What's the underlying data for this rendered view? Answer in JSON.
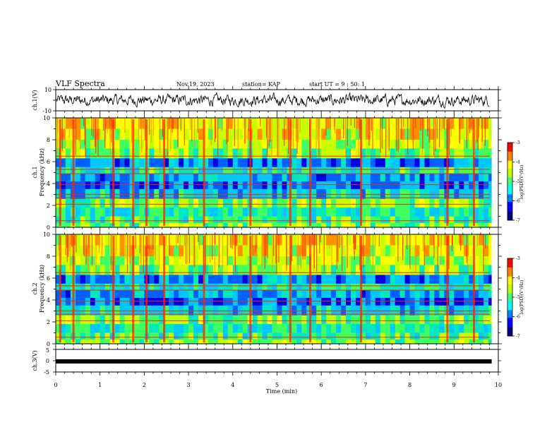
{
  "header": {
    "title": "VLF Spectra",
    "date": "Nov.19, 2023",
    "station": "station= KAP",
    "start": "start  UT =  9 : 50: 1"
  },
  "colorbar": {
    "label": "log(PSD)(V²/Hz)",
    "ticks": [
      "-3",
      "-4",
      "-5",
      "-6",
      "-7"
    ],
    "colors": [
      "#00007f",
      "#0000ff",
      "#0080ff",
      "#00ffff",
      "#40ff80",
      "#c0ff00",
      "#ffff00",
      "#ff8000",
      "#ff0000",
      "#ffffff"
    ]
  },
  "chart_data": [
    {
      "type": "line",
      "ylabel": "ch.1(V)",
      "ylim": [
        -10,
        10
      ],
      "yticks": [
        "10",
        "-10"
      ],
      "xlim": [
        0,
        10
      ],
      "description_values": {
        "mean": 0,
        "amplitude_approx": 7
      }
    },
    {
      "type": "heatmap",
      "ylabel_channel": "ch.1",
      "ylabel": "Frequency (kHz)",
      "xlim": [
        0,
        10
      ],
      "ylim": [
        0,
        10
      ],
      "yticks": [
        "0",
        "2",
        "4",
        "6",
        "8",
        "10"
      ],
      "colorbar_range": [
        -7,
        -3
      ],
      "horizontal_lines_khz": [
        0.6,
        2.1,
        2.7,
        3.0,
        3.9,
        4.9,
        5.3,
        6.5
      ],
      "vertical_bursts_min": [
        0.1,
        0.4,
        1.3,
        1.75,
        2.05,
        2.45,
        3.35,
        4.4,
        5.3,
        5.75,
        6.9,
        8.85,
        9.45
      ]
    },
    {
      "type": "heatmap",
      "ylabel_channel": "ch.2",
      "ylabel": "Frequency (kHz)",
      "xlim": [
        0,
        10
      ],
      "ylim": [
        0,
        10
      ],
      "yticks": [
        "0",
        "2",
        "4",
        "6",
        "8",
        "10"
      ],
      "colorbar_range": [
        -7,
        -3
      ],
      "horizontal_lines_khz": [
        0.6,
        2.1,
        2.7,
        3.0,
        3.9,
        4.9,
        5.3,
        6.5
      ],
      "vertical_bursts_min": [
        0.1,
        0.4,
        1.3,
        1.75,
        2.05,
        2.45,
        3.35,
        4.4,
        5.3,
        5.75,
        6.9,
        8.85,
        9.45
      ]
    },
    {
      "type": "line",
      "ylabel": "ch.3(V)",
      "ylim": [
        -5,
        5
      ],
      "yticks": [
        "5",
        "0",
        "-5"
      ],
      "xlim": [
        0,
        9.85
      ],
      "x": [
        0,
        9.85
      ],
      "y": [
        -0.3,
        -0.3
      ],
      "xlabel": "Time (min)",
      "xticks": [
        "0",
        "1",
        "2",
        "3",
        "4",
        "5",
        "6",
        "7",
        "8",
        "9",
        "10"
      ]
    }
  ]
}
